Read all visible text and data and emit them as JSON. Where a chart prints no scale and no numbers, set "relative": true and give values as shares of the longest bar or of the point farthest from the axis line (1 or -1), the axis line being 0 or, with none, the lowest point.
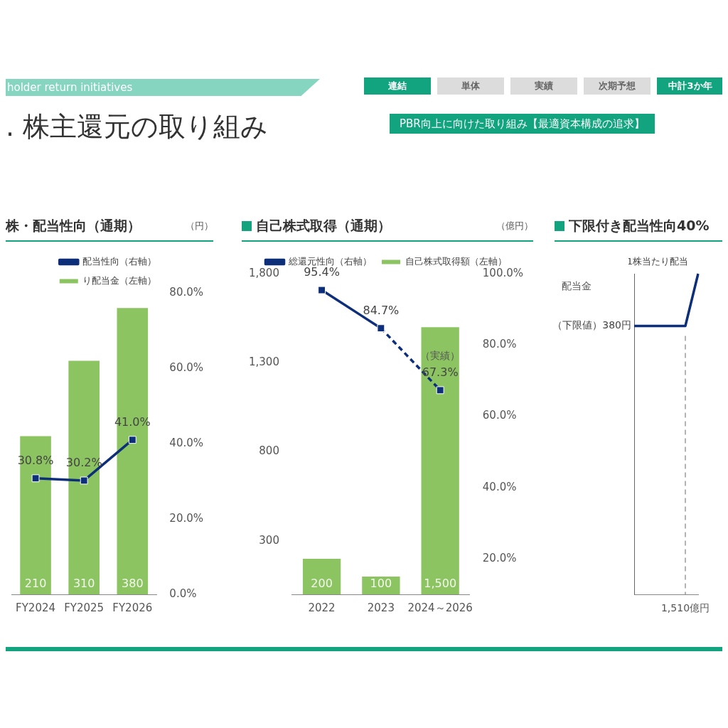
{
  "chart_data": [
    {
      "type": "other",
      "title": ". 株主還元の取り組み",
      "subtitle": "holder return initiatives",
      "annotations": [
        "連結",
        "単体",
        "実績",
        "次期予想",
        "中計3か年",
        "PBR向上に向けた取り組み【最適資本構成の追求】"
      ],
      "colors": [
        "#12a37f",
        "#dcdcdc",
        "#dcdcdc",
        "#dcdcdc",
        "#12a37f",
        "#12a37f"
      ]
    },
    {
      "type": "bar",
      "title": "株・配当性向（通期）",
      "annotations": [
        "（円）"
      ],
      "categories": [
        "FY2024",
        "FY2025",
        "FY2026"
      ],
      "y2lim": [
        0,
        80
      ],
      "y2ticks": [
        {
          "value": 0,
          "label": "0.0%"
        },
        {
          "value": 20,
          "label": "20.0%"
        },
        {
          "value": 40,
          "label": "40.0%"
        },
        {
          "value": 60,
          "label": "60.0%"
        },
        {
          "value": 80,
          "label": "80.0%"
        }
      ],
      "legend": "top",
      "marker": "square",
      "series": [
        {
          "name": "り配当金（左軸）",
          "color": "#8cc461",
          "values": [
            210,
            310,
            380
          ],
          "value_labels": [
            "210",
            "310",
            "380"
          ]
        },
        {
          "name": "配当性向（右軸）",
          "type": "line",
          "axis": "y2",
          "color": "#0d2f7a",
          "values": [
            30.8,
            30.2,
            41.0
          ],
          "value_labels": [
            "30.8%",
            "30.2%",
            "41.0%"
          ]
        }
      ]
    },
    {
      "type": "bar",
      "title": "自己株式取得（通期）",
      "annotations": [
        "（億円）",
        "（実績）"
      ],
      "categories": [
        "2022",
        "2023",
        "2024～2026"
      ],
      "ylim": [
        0,
        1800
      ],
      "yticks": [
        300,
        800,
        {
          "value": 1300,
          "label": "1,300"
        },
        {
          "value": 1800,
          "label": "1,800"
        }
      ],
      "y2lim": [
        10,
        100
      ],
      "y2ticks": [
        {
          "value": 20,
          "label": "20.0%"
        },
        {
          "value": 40,
          "label": "40.0%"
        },
        {
          "value": 60,
          "label": "60.0%"
        },
        {
          "value": 80,
          "label": "80.0%"
        },
        {
          "value": 100,
          "label": "100.0%"
        }
      ],
      "legend": "top",
      "marker": "square",
      "series": [
        {
          "name": "自己株式取得額（左軸）",
          "color": "#8cc461",
          "values": [
            200,
            100,
            1500
          ],
          "value_labels": [
            "200",
            "100",
            "1,500"
          ]
        },
        {
          "name": "総還元性向（右軸）",
          "type": "line",
          "axis": "y2",
          "color": "#0d2f7a",
          "values": [
            95.4,
            84.7,
            null
          ],
          "value_labels": [
            "95.4%",
            "84.7%",
            null
          ]
        },
        {
          "type": "line",
          "axis": "y2",
          "color": "#0d2f7a",
          "line_style": "dashed",
          "values": [
            null,
            84.7,
            67.3
          ],
          "value_labels": [
            null,
            null,
            "67.3%"
          ]
        }
      ]
    },
    {
      "type": "line",
      "title": "下限付き配当性向40%",
      "relative": true,
      "ylabel": "配当金",
      "categories": [
        null,
        null,
        null,
        null,
        null,
        null
      ],
      "legend": "top",
      "marker": "none",
      "annotations": [
        "（下限値）380円",
        "1,510億円"
      ],
      "series": [
        {
          "name": "1株当たり配当",
          "color": "#0d2f7a",
          "values": [
            0.837,
            0.837,
            0.837,
            0.837,
            0.837,
            1
          ]
        }
      ]
    }
  ]
}
